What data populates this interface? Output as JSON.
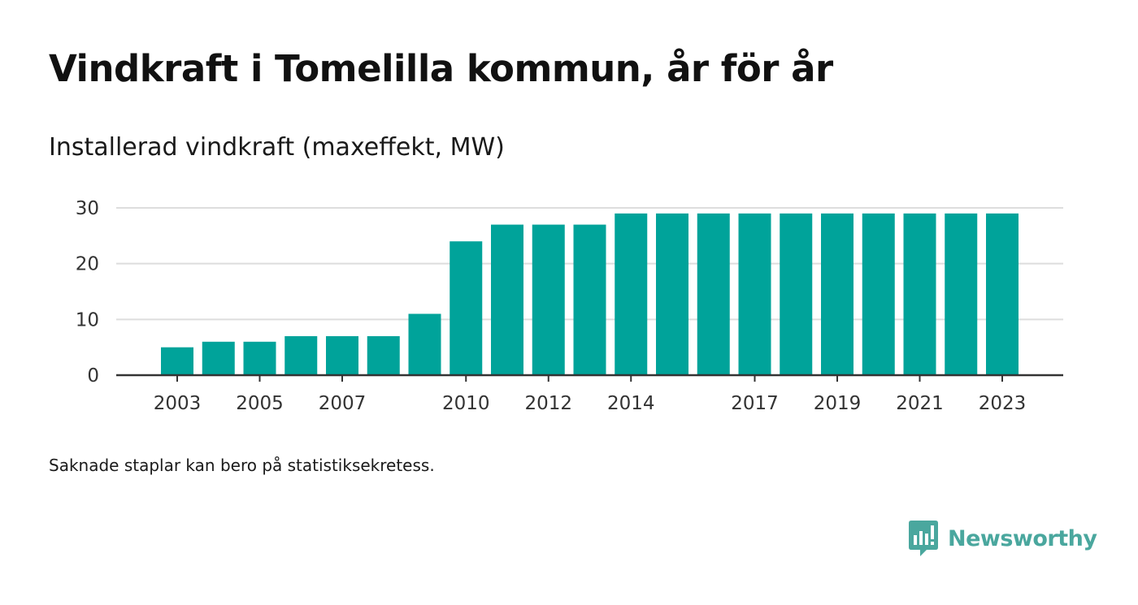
{
  "title": "Vindkraft i Tomelilla kommun, år för år",
  "subtitle": "Installerad vindkraft (maxeffekt, MW)",
  "footnote": "Saknade staplar kan bero på statistiksekretess.",
  "brand": {
    "name": "Newsworthy",
    "color": "#4aa79e",
    "icon": "bar-chart-speech-bubble-icon"
  },
  "colors": {
    "bar": "#00a39a",
    "grid": "#dddddd",
    "axis": "#333333"
  },
  "chart_data": {
    "type": "bar",
    "categories": [
      2003,
      2004,
      2005,
      2006,
      2007,
      2008,
      2009,
      2010,
      2011,
      2012,
      2013,
      2014,
      2015,
      2016,
      2017,
      2018,
      2019,
      2020,
      2021,
      2022,
      2023
    ],
    "values": [
      5,
      6,
      6,
      7,
      7,
      7,
      11,
      24,
      27,
      27,
      27,
      29,
      29,
      29,
      29,
      29,
      29,
      29,
      29,
      29,
      29
    ],
    "x_tick_labels": [
      "2003",
      "2005",
      "2007",
      "2010",
      "2012",
      "2014",
      "2017",
      "2019",
      "2021",
      "2023"
    ],
    "y_ticks": [
      0,
      10,
      20,
      30
    ],
    "ylim": [
      0,
      30
    ],
    "grid": true,
    "legend": "none"
  }
}
